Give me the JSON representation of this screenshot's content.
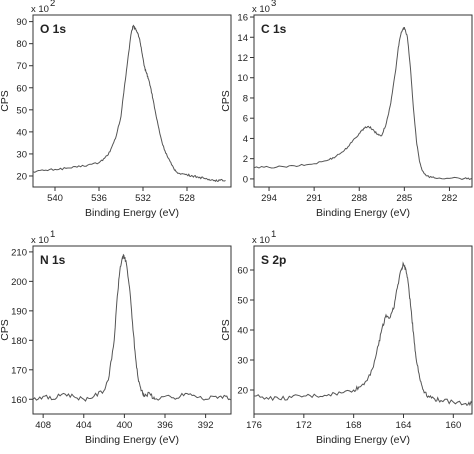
{
  "chart_data": [
    {
      "type": "line",
      "title": "O 1s",
      "xlabel": "Binding Energy (eV)",
      "ylabel": "CPS",
      "y_multiplier": "x 10",
      "y_exponent": "2",
      "x_reversed": true,
      "xlim": [
        542,
        524
      ],
      "ylim": [
        15,
        93
      ],
      "x_ticks": [
        "540",
        "536",
        "532",
        "528"
      ],
      "y_ticks": [
        "20",
        "30",
        "40",
        "50",
        "60",
        "70",
        "80",
        "90"
      ],
      "x": [
        542,
        541,
        540,
        539,
        538,
        537,
        536,
        535.5,
        535,
        534.5,
        534,
        533.7,
        533.4,
        533.1,
        532.9,
        532.7,
        532.5,
        532.3,
        532.1,
        531.9,
        531.7,
        531.5,
        531.3,
        531.1,
        530.8,
        530.5,
        530.2,
        529.8,
        529.4,
        529,
        528.5,
        528,
        527.5,
        527,
        526.5,
        526,
        525.5,
        525,
        524.5
      ],
      "series": [
        {
          "values": [
            22,
            22.5,
            23,
            23.5,
            24,
            25,
            26,
            28,
            31,
            37,
            47,
            60,
            72,
            84,
            88,
            87,
            85,
            82,
            76,
            70,
            67,
            64,
            60,
            55,
            47,
            40,
            34,
            29,
            25,
            22,
            21,
            20.5,
            20,
            19.5,
            19,
            18.5,
            18,
            18,
            18
          ]
        }
      ]
    },
    {
      "type": "line",
      "title": "C 1s",
      "xlabel": "Binding Energy (eV)",
      "ylabel": "CPS",
      "y_multiplier": "x 10",
      "y_exponent": "3",
      "x_reversed": true,
      "xlim": [
        295,
        280.5
      ],
      "ylim": [
        -0.8,
        16.2
      ],
      "x_ticks": [
        "294",
        "291",
        "288",
        "285",
        "282"
      ],
      "y_ticks": [
        "0",
        "2",
        "4",
        "6",
        "8",
        "10",
        "12",
        "14",
        "16"
      ],
      "x": [
        295,
        294,
        293,
        292,
        291,
        290,
        289.5,
        289,
        288.5,
        288,
        287.7,
        287.4,
        287.1,
        286.8,
        286.5,
        286.2,
        285.9,
        285.6,
        285.4,
        285.2,
        285,
        284.8,
        284.6,
        284.4,
        284.2,
        284,
        283.8,
        283.5,
        283,
        282,
        281,
        280.5
      ],
      "series": [
        {
          "values": [
            1.1,
            1.15,
            1.2,
            1.3,
            1.5,
            1.9,
            2.3,
            2.8,
            3.6,
            4.5,
            5.0,
            5.2,
            4.9,
            4.4,
            4.3,
            5.5,
            7.5,
            10.5,
            13,
            14.5,
            15,
            14,
            11,
            7,
            3.8,
            1.8,
            0.8,
            0.3,
            0.1,
            0.05,
            0.05,
            0.05
          ]
        }
      ]
    },
    {
      "type": "line",
      "title": "N 1s",
      "xlabel": "Binding Energy (eV)",
      "ylabel": "CPS",
      "y_multiplier": "x 10",
      "y_exponent": "1",
      "x_reversed": true,
      "xlim": [
        409,
        389.5
      ],
      "ylim": [
        155,
        212
      ],
      "x_ticks": [
        "408",
        "404",
        "400",
        "396",
        "392"
      ],
      "y_ticks": [
        "160",
        "170",
        "180",
        "190",
        "200",
        "210"
      ],
      "x": [
        409,
        408,
        407,
        406,
        405,
        404,
        403,
        402,
        401.5,
        401,
        400.7,
        400.4,
        400.1,
        399.8,
        399.5,
        399.2,
        398.9,
        398.6,
        398.3,
        398,
        397.5,
        397,
        396,
        395,
        394,
        393,
        392,
        391,
        390,
        389.5
      ],
      "series": [
        {
          "values": [
            160,
            161,
            160,
            162,
            161,
            160,
            161,
            163,
            168,
            180,
            195,
            205,
            209,
            206,
            198,
            186,
            174,
            166,
            163,
            161,
            162,
            160,
            161,
            160,
            162,
            161,
            160,
            161,
            161,
            160
          ]
        }
      ]
    },
    {
      "type": "line",
      "title": "S 2p",
      "xlabel": "Binding Energy (eV)",
      "ylabel": "CPS",
      "y_multiplier": "x 10",
      "y_exponent": "1",
      "x_reversed": true,
      "xlim": [
        176,
        158.5
      ],
      "ylim": [
        12,
        68
      ],
      "x_ticks": [
        "176",
        "172",
        "168",
        "164",
        "160"
      ],
      "y_ticks": [
        "20",
        "30",
        "40",
        "50",
        "60"
      ],
      "x": [
        176,
        175,
        174,
        173,
        172,
        171,
        170,
        169,
        168,
        167.5,
        167,
        166.5,
        166,
        165.7,
        165.4,
        165.1,
        164.8,
        164.5,
        164.2,
        164,
        163.8,
        163.6,
        163.4,
        163.2,
        163,
        162.7,
        162.4,
        162,
        161.5,
        161,
        160,
        159,
        158.5
      ],
      "series": [
        {
          "values": [
            18,
            17.5,
            17,
            17.5,
            18,
            18,
            18.5,
            19,
            20,
            21,
            23,
            27,
            35,
            41,
            45,
            44,
            47,
            54,
            60,
            62,
            60,
            55,
            47,
            39,
            31,
            24,
            20,
            18,
            17,
            16.5,
            16,
            15.5,
            15.5
          ]
        }
      ]
    }
  ]
}
